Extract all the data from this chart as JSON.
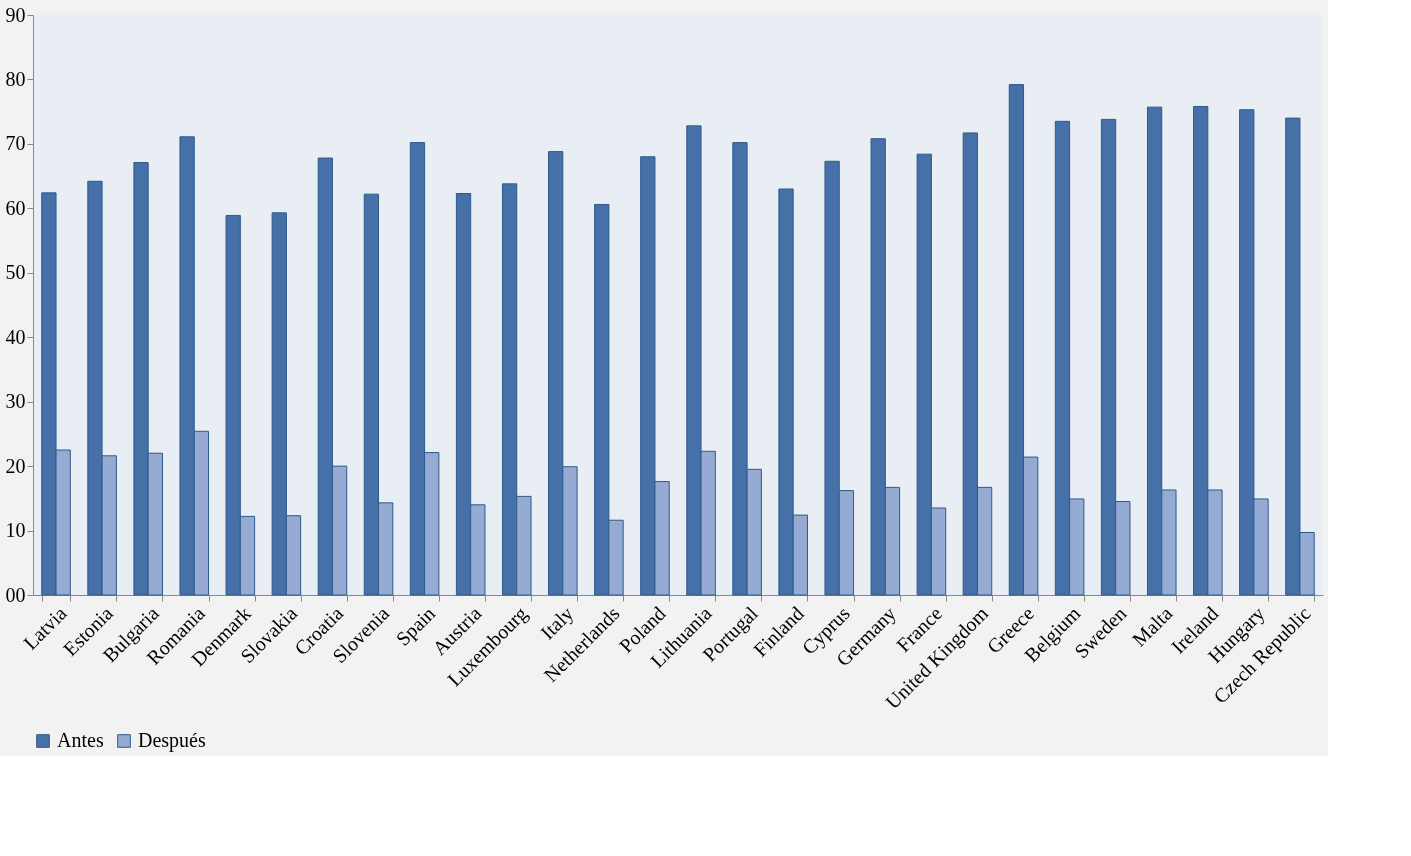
{
  "chart_data": {
    "type": "bar",
    "categories": [
      "Latvia",
      "Estonia",
      "Bulgaria",
      "Romania",
      "Denmark",
      "Slovakia",
      "Croatia",
      "Slovenia",
      "Spain",
      "Austria",
      "Luxembourg",
      "Italy",
      "Netherlands",
      "Poland",
      "Lithuania",
      "Portugal",
      "Finland",
      "Cyprus",
      "Germany",
      "France",
      "United Kingdom",
      "Greece",
      "Belgium",
      "Sweden",
      "Malta",
      "Ireland",
      "Hungary",
      "Czech Republic"
    ],
    "series": [
      {
        "name": "Antes",
        "color": "#4571a8",
        "values": [
          62.4,
          64.2,
          67.1,
          71.1,
          58.9,
          59.3,
          67.8,
          62.2,
          70.2,
          62.3,
          63.8,
          68.8,
          60.6,
          68.0,
          72.8,
          70.2,
          63.0,
          67.3,
          70.8,
          68.4,
          71.7,
          79.2,
          73.5,
          73.8,
          75.7,
          75.8,
          75.3,
          74.0
        ]
      },
      {
        "name": "Después",
        "color": "#95abd3",
        "values": [
          22.5,
          21.6,
          22.0,
          25.4,
          12.2,
          12.3,
          20.0,
          14.3,
          22.1,
          14.0,
          15.3,
          19.9,
          11.6,
          17.6,
          22.3,
          19.5,
          12.4,
          16.2,
          16.7,
          13.5,
          16.7,
          21.4,
          14.9,
          14.5,
          16.3,
          16.3,
          14.9,
          9.7
        ]
      }
    ],
    "ylim": [
      0,
      90
    ],
    "yticks": [
      {
        "value": 0,
        "label": "00"
      },
      10,
      20,
      30,
      40,
      50,
      60,
      70,
      80,
      90
    ],
    "grid": false,
    "legend": "bottom"
  }
}
